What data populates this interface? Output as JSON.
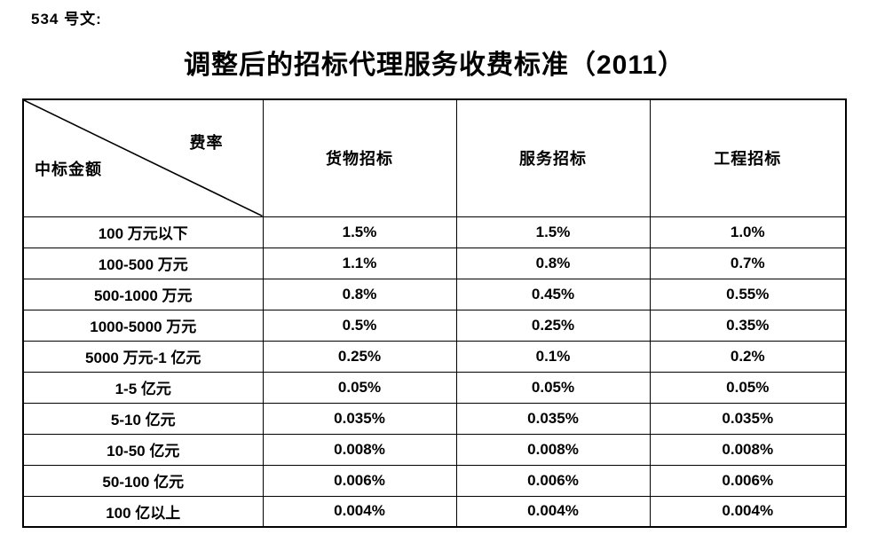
{
  "doc": {
    "doc_number": "534 号文:",
    "title": "调整后的招标代理服务收费标准（2011）"
  },
  "table": {
    "corner_top_right": "费率",
    "corner_bottom_left": "中标金额",
    "columns": [
      "货物招标",
      "服务招标",
      "工程招标"
    ],
    "rows": [
      {
        "label": "100 万元以下",
        "values": [
          "1.5%",
          "1.5%",
          "1.0%"
        ]
      },
      {
        "label": "100-500 万元",
        "values": [
          "1.1%",
          "0.8%",
          "0.7%"
        ]
      },
      {
        "label": "500-1000 万元",
        "values": [
          "0.8%",
          "0.45%",
          "0.55%"
        ]
      },
      {
        "label": "1000-5000 万元",
        "values": [
          "0.5%",
          "0.25%",
          "0.35%"
        ]
      },
      {
        "label": "5000 万元-1 亿元",
        "values": [
          "0.25%",
          "0.1%",
          "0.2%"
        ]
      },
      {
        "label": "1-5 亿元",
        "values": [
          "0.05%",
          "0.05%",
          "0.05%"
        ]
      },
      {
        "label": "5-10 亿元",
        "values": [
          "0.035%",
          "0.035%",
          "0.035%"
        ]
      },
      {
        "label": "10-50 亿元",
        "values": [
          "0.008%",
          "0.008%",
          "0.008%"
        ]
      },
      {
        "label": "50-100 亿元",
        "values": [
          "0.006%",
          "0.006%",
          "0.006%"
        ]
      },
      {
        "label": "100 亿以上",
        "values": [
          "0.004%",
          "0.004%",
          "0.004%"
        ]
      }
    ],
    "colors": {
      "border": "#000000",
      "text": "#000000",
      "background": "#ffffff"
    }
  }
}
